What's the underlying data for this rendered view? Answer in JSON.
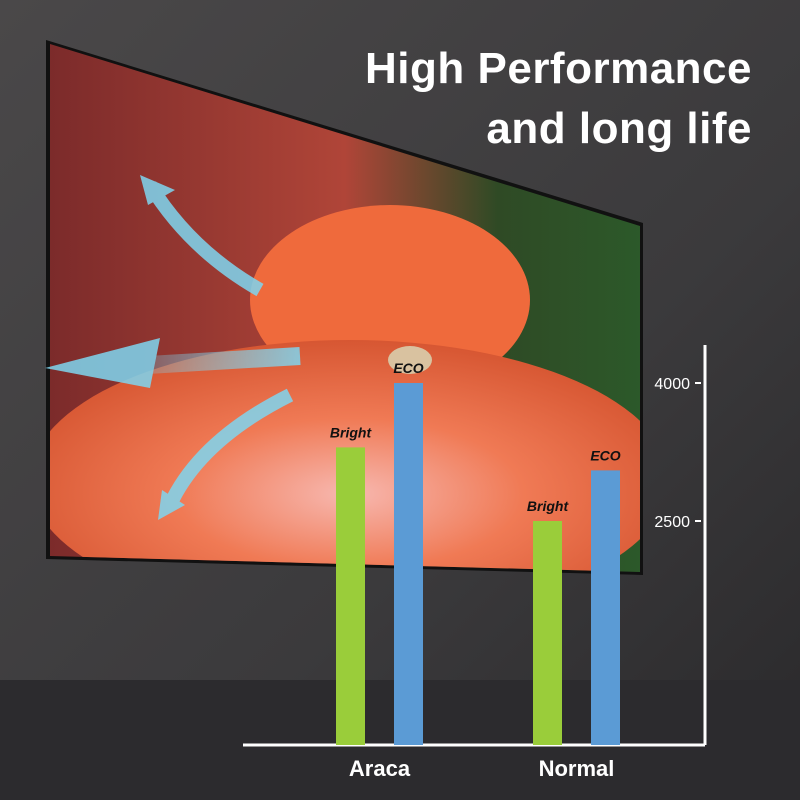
{
  "headline": {
    "line1": "High Performance",
    "line2": "and long life"
  },
  "chart_data": {
    "type": "bar",
    "categories": [
      "Araca",
      "Normal"
    ],
    "series": [
      {
        "name": "Bright",
        "values": [
          3300,
          2500
        ],
        "color": "#9acd3a"
      },
      {
        "name": "ECO",
        "values": [
          4000,
          3050
        ],
        "color": "#5b9bd5"
      }
    ],
    "yticks": [
      2500,
      4000
    ],
    "ytick_labels": [
      "2500",
      "4000"
    ],
    "ylim": [
      0,
      4400
    ],
    "axis_position": "right",
    "grid": false
  }
}
